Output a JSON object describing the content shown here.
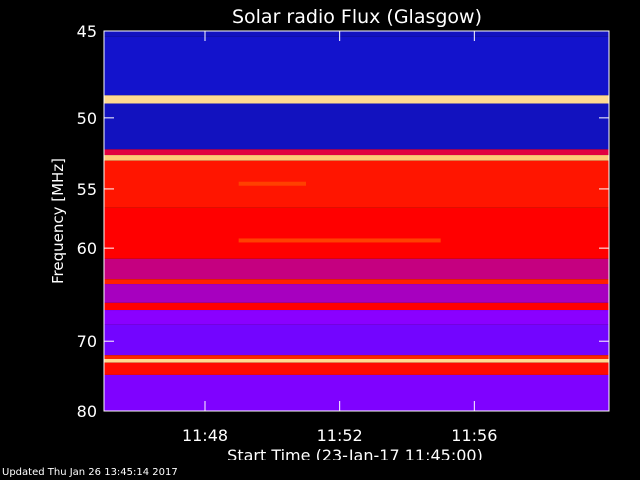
{
  "chart_data": {
    "type": "heatmap",
    "title": "Solar radio Flux (Glasgow)",
    "xlabel": "Start Time (23-Jan-17 11:45:00)",
    "ylabel": "Frequency [MHz]",
    "x_start": "11:45",
    "x_end": "12:00",
    "x_ticks": [
      "11:48",
      "11:52",
      "11:56"
    ],
    "ylim": [
      45,
      80
    ],
    "y_ticks": [
      45,
      50,
      55,
      60,
      70,
      80
    ],
    "y_scale": "reciprocal",
    "colormap": [
      "#000000",
      "#1818ff",
      "#8a00ff",
      "#ff0000",
      "#ff6a00",
      "#ffe8a0"
    ],
    "bands": [
      {
        "from": 45.0,
        "to": 45.3,
        "level": 0.15
      },
      {
        "from": 45.3,
        "to": 48.6,
        "level": 0.16
      },
      {
        "from": 48.6,
        "to": 49.1,
        "level": 0.98
      },
      {
        "from": 49.1,
        "to": 52.1,
        "level": 0.15
      },
      {
        "from": 52.1,
        "to": 52.5,
        "level": 0.55
      },
      {
        "from": 52.5,
        "to": 52.9,
        "level": 0.95
      },
      {
        "from": 52.9,
        "to": 56.5,
        "level": 0.64
      },
      {
        "from": 56.5,
        "to": 61.0,
        "level": 0.6
      },
      {
        "from": 61.0,
        "to": 63.0,
        "level": 0.5
      },
      {
        "from": 63.0,
        "to": 63.5,
        "level": 0.66
      },
      {
        "from": 63.5,
        "to": 65.5,
        "level": 0.45
      },
      {
        "from": 65.5,
        "to": 66.3,
        "level": 0.6
      },
      {
        "from": 66.3,
        "to": 68.0,
        "level": 0.4
      },
      {
        "from": 68.0,
        "to": 71.8,
        "level": 0.36
      },
      {
        "from": 71.8,
        "to": 72.3,
        "level": 0.67
      },
      {
        "from": 72.3,
        "to": 72.8,
        "level": 0.98
      },
      {
        "from": 72.8,
        "to": 74.5,
        "level": 0.62
      },
      {
        "from": 74.5,
        "to": 80.0,
        "level": 0.38
      }
    ],
    "features": [
      {
        "freq": 59.3,
        "t_from": "11:49",
        "t_to": "11:55",
        "level": 0.72
      },
      {
        "freq": 54.6,
        "t_from": "11:49",
        "t_to": "11:51",
        "level": 0.72
      }
    ]
  },
  "footer": "Updated Thu Jan 26 13:45:14 2017"
}
